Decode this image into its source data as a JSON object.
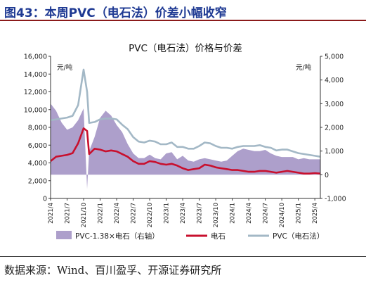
{
  "figure_title": "图43：本周PVC（电石法）价差小幅收窄",
  "source_note": "数据来源：Wind、百川盈孚、开源证券研究所",
  "colors": {
    "spread_fill": "#ad9fcb",
    "calcium_carbide": "#c8102e",
    "pvc": "#a3b8c6",
    "title": "#1f3a93"
  },
  "chart_data": {
    "type": "line",
    "title": "PVC（电石法）价格与价差",
    "left_unit": "元/吨",
    "right_unit": "元/吨",
    "y_left": {
      "lim": [
        0,
        16000
      ],
      "ticks": [
        "0",
        "2,000",
        "4,000",
        "6,000",
        "8,000",
        "10,000",
        "12,000",
        "14,000",
        "16,000"
      ]
    },
    "y_right": {
      "lim": [
        -1000,
        5000
      ],
      "ticks": [
        "-1,000",
        "0",
        "1,000",
        "2,000",
        "3,000",
        "4,000",
        "5,000"
      ]
    },
    "x_ticks": [
      "2021/4",
      "2021/7",
      "2021/10",
      "2022/1",
      "2022/4",
      "2022/7",
      "2022/10",
      "2023/1",
      "2023/4",
      "2023/7",
      "2023/10",
      "2024/1",
      "2024/4",
      "2024/7",
      "2024/10",
      "2025/1",
      "2025/4"
    ],
    "x_range": [
      "2021-04",
      "2025-05"
    ],
    "legend": [
      "PVC-1.38×电石（右轴）",
      "电石",
      "PVC（电石法）"
    ],
    "series": [
      {
        "name": "PVC-1.38×电石（右轴）",
        "axis": "right",
        "type": "area",
        "x": [
          "2021-04",
          "2021-05",
          "2021-06",
          "2021-07",
          "2021-08",
          "2021-09",
          "2021-10",
          "2021-10-20",
          "2021-11",
          "2021-12",
          "2022-01",
          "2022-02",
          "2022-03",
          "2022-04",
          "2022-05",
          "2022-06",
          "2022-07",
          "2022-08",
          "2022-09",
          "2022-10",
          "2022-11",
          "2022-12",
          "2023-01",
          "2023-02",
          "2023-03",
          "2023-04",
          "2023-05",
          "2023-06",
          "2023-07",
          "2023-08",
          "2023-09",
          "2023-10",
          "2023-11",
          "2023-12",
          "2024-01",
          "2024-02",
          "2024-03",
          "2024-04",
          "2024-05",
          "2024-06",
          "2024-07",
          "2024-08",
          "2024-09",
          "2024-10",
          "2024-11",
          "2024-12",
          "2025-01",
          "2025-02",
          "2025-03",
          "2025-04",
          "2025-05"
        ],
        "values": [
          3000,
          2700,
          2200,
          1900,
          2000,
          2300,
          2800,
          -600,
          1000,
          1600,
          2400,
          2700,
          2500,
          2100,
          1800,
          1300,
          900,
          700,
          700,
          850,
          700,
          650,
          900,
          950,
          650,
          800,
          600,
          550,
          650,
          700,
          650,
          600,
          550,
          600,
          800,
          1000,
          1100,
          1050,
          1000,
          1000,
          1050,
          900,
          800,
          750,
          750,
          750,
          650,
          700,
          650,
          650,
          650
        ]
      },
      {
        "name": "电石",
        "axis": "left",
        "type": "line",
        "x": [
          "2021-04",
          "2021-05",
          "2021-06",
          "2021-07",
          "2021-08",
          "2021-09",
          "2021-10",
          "2021-10-20",
          "2021-11",
          "2021-12",
          "2022-01",
          "2022-02",
          "2022-03",
          "2022-04",
          "2022-05",
          "2022-06",
          "2022-07",
          "2022-08",
          "2022-09",
          "2022-10",
          "2022-11",
          "2022-12",
          "2023-01",
          "2023-02",
          "2023-03",
          "2023-04",
          "2023-05",
          "2023-06",
          "2023-07",
          "2023-08",
          "2023-09",
          "2023-10",
          "2023-11",
          "2023-12",
          "2024-01",
          "2024-02",
          "2024-03",
          "2024-04",
          "2024-05",
          "2024-06",
          "2024-07",
          "2024-08",
          "2024-09",
          "2024-10",
          "2024-11",
          "2024-12",
          "2025-01",
          "2025-02",
          "2025-03",
          "2025-04",
          "2025-05"
        ],
        "values": [
          4200,
          4700,
          4800,
          4900,
          5100,
          6200,
          7900,
          7600,
          5000,
          5600,
          5500,
          5300,
          5400,
          5300,
          5000,
          4700,
          4200,
          3900,
          3900,
          4200,
          4100,
          3900,
          3800,
          3900,
          3700,
          3400,
          3200,
          3300,
          3400,
          3800,
          3700,
          3500,
          3400,
          3300,
          3200,
          3200,
          3100,
          3000,
          3000,
          3100,
          3100,
          3000,
          2900,
          3000,
          3100,
          3000,
          2900,
          2800,
          2800,
          2850,
          2800
        ]
      },
      {
        "name": "PVC（电石法）",
        "axis": "left",
        "type": "line",
        "x": [
          "2021-04",
          "2021-05",
          "2021-06",
          "2021-07",
          "2021-08",
          "2021-09",
          "2021-10",
          "2021-10-20",
          "2021-11",
          "2021-12",
          "2022-01",
          "2022-02",
          "2022-03",
          "2022-04",
          "2022-05",
          "2022-06",
          "2022-07",
          "2022-08",
          "2022-09",
          "2022-10",
          "2022-11",
          "2022-12",
          "2023-01",
          "2023-02",
          "2023-03",
          "2023-04",
          "2023-05",
          "2023-06",
          "2023-07",
          "2023-08",
          "2023-09",
          "2023-10",
          "2023-11",
          "2023-12",
          "2024-01",
          "2024-02",
          "2024-03",
          "2024-04",
          "2024-05",
          "2024-06",
          "2024-07",
          "2024-08",
          "2024-09",
          "2024-10",
          "2024-11",
          "2024-12",
          "2025-01",
          "2025-02",
          "2025-03",
          "2025-04",
          "2025-05"
        ],
        "values": [
          8800,
          8900,
          9000,
          9100,
          9300,
          10500,
          14500,
          12000,
          8500,
          8600,
          8900,
          9000,
          9000,
          8900,
          8300,
          7800,
          6900,
          6400,
          6300,
          6500,
          6400,
          6100,
          6100,
          6300,
          5800,
          5800,
          5600,
          5600,
          5900,
          6300,
          6200,
          5900,
          5700,
          5700,
          5600,
          5800,
          5900,
          5900,
          5900,
          6000,
          5800,
          5700,
          5400,
          5500,
          5500,
          5300,
          5100,
          5000,
          4900,
          4800,
          4700
        ]
      }
    ]
  }
}
